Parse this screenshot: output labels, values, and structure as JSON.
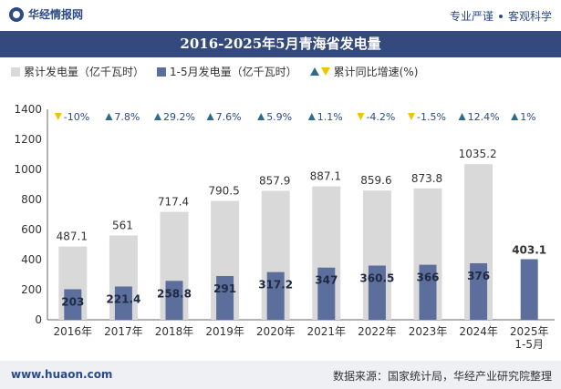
{
  "header": {
    "brand": "华经情报网",
    "slogan_left": "专业严谨",
    "slogan_right": "客观科学"
  },
  "footer": {
    "website": "www.huaon.com",
    "source": "数据来源：国家统计局，华经产业研究院整理"
  },
  "colors": {
    "total_bar": "#d9d9d9",
    "period_bar": "#5c6e9c",
    "up": "#2d6b8f",
    "down": "#f2c400",
    "title_bg": "#34497e"
  },
  "chart_data": {
    "type": "bar",
    "title": "2016-2025年5月青海省发电量",
    "categories": [
      "2016年",
      "2017年",
      "2018年",
      "2019年",
      "2020年",
      "2021年",
      "2022年",
      "2023年",
      "2024年",
      "2025年\n1-5月"
    ],
    "series": [
      {
        "name": "累计发电量（亿千瓦时）",
        "values": [
          487.1,
          561,
          717.4,
          790.5,
          857.9,
          887.1,
          859.6,
          873.8,
          1035.2,
          null
        ],
        "labels": [
          "487.1",
          "561",
          "717.4",
          "790.5",
          "857.9",
          "887.1",
          "859.6",
          "873.8",
          "1035.2",
          ""
        ]
      },
      {
        "name": "1-5月发电量（亿千瓦时）",
        "values": [
          203,
          221.4,
          258.8,
          291,
          317.2,
          347,
          360.5,
          366,
          376,
          403.1
        ],
        "labels": [
          "203",
          "221.4",
          "258.8",
          "291",
          "317.2",
          "347",
          "360.5",
          "366",
          "376",
          "403.1"
        ]
      }
    ],
    "growth": {
      "name": "累计同比增速(%)",
      "values": [
        -10,
        7.8,
        29.2,
        7.6,
        5.9,
        1.1,
        -4.2,
        -1.5,
        12.4,
        1
      ],
      "labels": [
        "-10%",
        "7.8%",
        "29.2%",
        "7.6%",
        "5.9%",
        "1.1%",
        "-4.2%",
        "-1.5%",
        "12.4%",
        "1%"
      ]
    },
    "ylim": [
      0,
      1400
    ],
    "yticks": [
      "0",
      "200",
      "400",
      "600",
      "800",
      "1000",
      "1200",
      "1400"
    ],
    "grid": false,
    "legend_position": "top-left"
  }
}
